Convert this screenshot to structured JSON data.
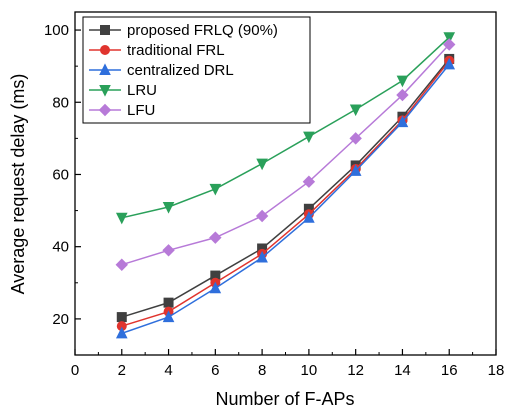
{
  "chart_data": {
    "type": "line",
    "xlabel": "Number of F-APs",
    "ylabel": "Average request delay (ms)",
    "xlim": [
      0,
      18
    ],
    "ylim": [
      10,
      105
    ],
    "xticks": [
      0,
      2,
      4,
      6,
      8,
      10,
      12,
      14,
      16,
      18
    ],
    "yticks": [
      20,
      40,
      60,
      80,
      100
    ],
    "x": [
      2,
      4,
      6,
      8,
      10,
      12,
      14,
      16
    ],
    "grid": false,
    "legend_position": "top-left",
    "series": [
      {
        "name": "proposed FRLQ (90%)",
        "color": "#404040",
        "marker": "square",
        "values": [
          20.5,
          24.5,
          32,
          39.5,
          50.5,
          62.5,
          76,
          92
        ]
      },
      {
        "name": "traditional FRL",
        "color": "#e0342e",
        "marker": "circle",
        "values": [
          18,
          22,
          30,
          38,
          49,
          61.5,
          75,
          91.5
        ]
      },
      {
        "name": "centralized DRL",
        "color": "#2f6fdc",
        "marker": "triangle-up",
        "values": [
          16,
          20.5,
          28.5,
          37,
          48,
          61,
          74.5,
          90.5
        ]
      },
      {
        "name": "LRU",
        "color": "#2aa05a",
        "marker": "triangle-down",
        "values": [
          48,
          51,
          56,
          63,
          70.5,
          78,
          86,
          98
        ]
      },
      {
        "name": "LFU",
        "color": "#b77ad8",
        "marker": "diamond",
        "values": [
          35,
          39,
          42.5,
          48.5,
          58,
          70,
          82,
          96
        ]
      }
    ]
  }
}
